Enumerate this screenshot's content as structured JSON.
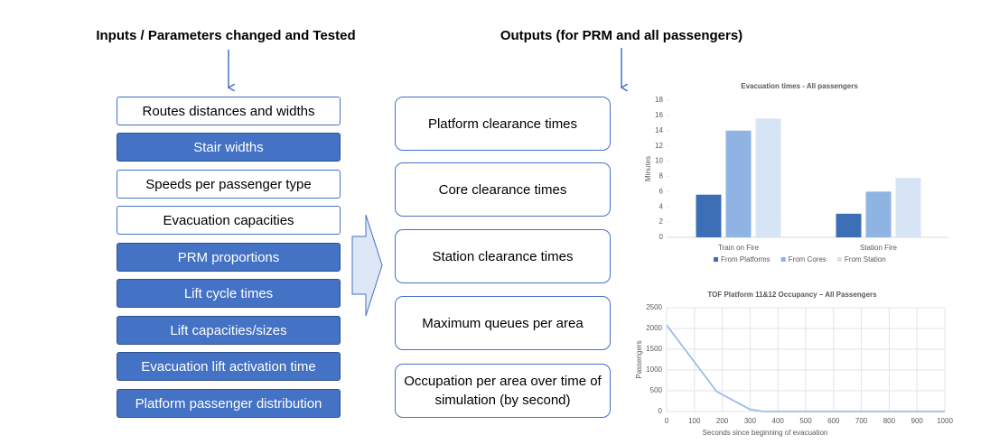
{
  "inputs": {
    "title": "Inputs / Parameters changed and Tested",
    "items": [
      "Routes distances and widths",
      "Stair widths",
      "Speeds per passenger type",
      "Evacuation capacities",
      "PRM proportions",
      "Lift cycle times",
      "Lift capacities/sizes",
      "Evacuation lift activation time",
      "Platform passenger distribution"
    ]
  },
  "outputs": {
    "title": "Outputs (for PRM and all passengers)",
    "items": [
      "Platform clearance times",
      "Core clearance times",
      "Station clearance times",
      "Maximum queues per area",
      "Occupation per area over time of simulation (by second)"
    ]
  },
  "chart_data": [
    {
      "type": "bar",
      "title": "Evacuation times - All passengers",
      "ylabel": "Minutes",
      "categories": [
        "Train on Fire",
        "Station Fire"
      ],
      "series": [
        {
          "name": "From Platforms",
          "color": "#3d6fb6",
          "values": [
            5.6,
            3.1
          ]
        },
        {
          "name": "From Cores",
          "color": "#8fb4e4",
          "values": [
            14,
            6
          ]
        },
        {
          "name": "From Station",
          "color": "#d7e4f5",
          "values": [
            15.6,
            7.8
          ]
        }
      ],
      "ylim": [
        0,
        18
      ],
      "yticks": [
        0,
        2,
        4,
        6,
        8,
        10,
        12,
        14,
        16,
        18
      ],
      "legend": "bottom"
    },
    {
      "type": "line",
      "title": "TOF Platform 11&12 Occupancy – All Passengers",
      "xlabel": "Seconds since beginning of evacuation",
      "ylabel": "Passengers",
      "x": [
        0,
        180,
        300,
        350,
        1000
      ],
      "values": [
        2080,
        480,
        50,
        0,
        0
      ],
      "color": "#9dbde8",
      "xlim": [
        0,
        1000
      ],
      "xticks": [
        0,
        100,
        200,
        300,
        400,
        500,
        600,
        700,
        800,
        900,
        1000
      ],
      "ylim": [
        0,
        2500
      ],
      "yticks": [
        0,
        500,
        1000,
        1500,
        2000,
        2500
      ],
      "grid": true
    }
  ]
}
